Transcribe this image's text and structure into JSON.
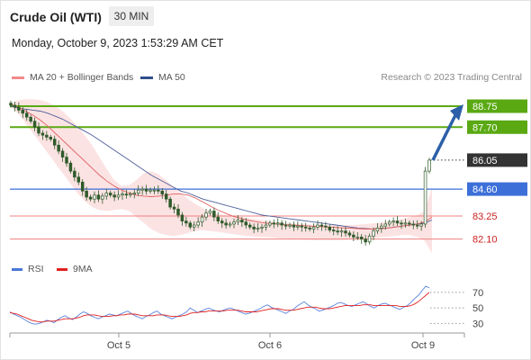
{
  "header": {
    "title": "Crude Oil (WTI)",
    "timeframe": "30 MIN",
    "datetime": "Monday, October 9, 2023 1:53:29 AM CET"
  },
  "legend": {
    "items": [
      {
        "label": "MA 20 + Bollinger Bands",
        "color": "#f28a8a"
      },
      {
        "label": "MA 50",
        "color": "#2e4f8a"
      }
    ],
    "credit": "Research © 2023 Trading Central"
  },
  "rsi_legend": {
    "items": [
      {
        "label": "RSI",
        "color": "#4a78d8"
      },
      {
        "label": "9MA",
        "color": "#e02020"
      }
    ]
  },
  "colors": {
    "green": "#5aa913",
    "blue": "#3c6fd8",
    "red_line": "#ef7f7f",
    "candle": "#2f5a2a",
    "ma50": "#4f5f9a",
    "ma20": "#e06060",
    "band_fill": "#fcdede",
    "arrow": "#2c5fa8",
    "price_box": "#333333"
  },
  "chart_data": [
    {
      "type": "candlestick",
      "title": "Crude Oil (WTI)",
      "timeframe": "30 MIN",
      "ylim": [
        81.0,
        89.2
      ],
      "x_ticks": [
        "Oct 5",
        "Oct 6",
        "Oct 9"
      ],
      "levels": [
        {
          "label": "88.75",
          "value": 88.75,
          "kind": "resistance"
        },
        {
          "label": "87.70",
          "value": 87.7,
          "kind": "resistance"
        },
        {
          "label": "86.05",
          "value": 86.05,
          "kind": "last-price"
        },
        {
          "label": "84.60",
          "value": 84.6,
          "kind": "pivot"
        },
        {
          "label": "83.25",
          "value": 83.25,
          "kind": "support"
        },
        {
          "label": "82.10",
          "value": 82.1,
          "kind": "support"
        }
      ],
      "forecast_arrow": {
        "from": 86.05,
        "to": 88.75
      },
      "close": [
        88.8,
        88.7,
        88.55,
        88.4,
        88.2,
        88.0,
        87.7,
        87.4,
        87.3,
        87.2,
        87.1,
        86.8,
        86.5,
        86.2,
        85.9,
        85.5,
        85.2,
        84.95,
        84.5,
        84.2,
        84.1,
        84.3,
        84.1,
        84.25,
        84.4,
        84.3,
        84.2,
        84.3,
        84.35,
        84.3,
        84.35,
        84.4,
        84.55,
        84.6,
        84.5,
        84.55,
        84.55,
        84.5,
        84.35,
        84.1,
        83.7,
        83.6,
        83.3,
        83.0,
        82.9,
        82.7,
        82.8,
        82.95,
        83.2,
        83.4,
        83.5,
        83.2,
        83.0,
        82.9,
        82.8,
        82.85,
        82.95,
        83.05,
        82.95,
        82.8,
        82.7,
        82.6,
        82.65,
        82.7,
        82.8,
        82.9,
        82.85,
        82.9,
        82.8,
        82.75,
        82.8,
        82.7,
        82.75,
        82.7,
        82.65,
        82.6,
        82.7,
        82.8,
        82.75,
        82.7,
        82.55,
        82.5,
        82.45,
        82.5,
        82.4,
        82.3,
        82.2,
        82.2,
        82.1,
        81.95,
        82.25,
        82.5,
        82.65,
        82.75,
        82.85,
        82.95,
        83.0,
        82.9,
        82.85,
        82.9,
        82.85,
        82.8,
        82.75,
        82.85,
        85.5,
        86.05
      ],
      "ma50": [
        88.75,
        88.65,
        88.6,
        88.55,
        88.5,
        88.4,
        88.25,
        88.1,
        87.9,
        87.7,
        87.5,
        87.3,
        87.05,
        86.8,
        86.55,
        86.3,
        86.05,
        85.8,
        85.55,
        85.3,
        85.1,
        84.9,
        84.7,
        84.5,
        84.4,
        84.25,
        84.1,
        84.0,
        83.9,
        83.8,
        83.7,
        83.6,
        83.5,
        83.4,
        83.3,
        83.25,
        83.2,
        83.15,
        83.1,
        83.05,
        83.0,
        82.95,
        82.9,
        82.85,
        82.8,
        82.75,
        82.7,
        82.65,
        82.62,
        82.6,
        82.62,
        82.65,
        82.7,
        82.75,
        82.8,
        82.85,
        82.9,
        83.05
      ],
      "ma20": [
        88.85,
        88.7,
        88.5,
        88.3,
        88.05,
        87.75,
        87.4,
        87.05,
        86.7,
        86.35,
        86.0,
        85.65,
        85.3,
        85.0,
        84.75,
        84.55,
        84.4,
        84.3,
        84.25,
        84.22,
        84.25,
        84.3,
        84.35,
        84.35,
        84.3,
        84.15,
        83.95,
        83.75,
        83.55,
        83.4,
        83.25,
        83.15,
        83.05,
        82.98,
        82.92,
        82.88,
        82.85,
        82.82,
        82.8,
        82.78,
        82.76,
        82.74,
        82.72,
        82.7,
        82.68,
        82.66,
        82.64,
        82.62,
        82.6,
        82.6,
        82.62,
        82.65,
        82.7,
        82.75,
        82.8,
        82.85,
        82.95,
        83.2
      ],
      "bb_upper": [
        88.9,
        89.05,
        89.1,
        89.1,
        89.05,
        88.95,
        88.75,
        88.5,
        88.15,
        87.75,
        87.3,
        86.8,
        86.2,
        85.6,
        85.05,
        84.75,
        84.8,
        85.05,
        85.4,
        85.5,
        85.35,
        85.05,
        84.7,
        84.4,
        84.1,
        83.85,
        83.65,
        83.45,
        83.35,
        83.3,
        83.25,
        83.2,
        83.15,
        83.1,
        83.05,
        83.0,
        82.95,
        82.9,
        82.88,
        82.86,
        82.84,
        82.82,
        82.8,
        82.8,
        82.8,
        82.8,
        82.8,
        82.82,
        82.85,
        82.88,
        82.92,
        82.97,
        83.03,
        83.1,
        83.2,
        83.3,
        83.5,
        84.7
      ],
      "bb_lower": [
        88.7,
        88.4,
        87.9,
        87.4,
        86.9,
        86.4,
        85.9,
        85.4,
        84.9,
        84.4,
        84.0,
        83.7,
        83.55,
        83.5,
        83.55,
        83.6,
        83.5,
        83.2,
        82.9,
        82.6,
        82.4,
        82.3,
        82.25,
        82.3,
        82.4,
        82.5,
        82.55,
        82.5,
        82.45,
        82.4,
        82.35,
        82.3,
        82.25,
        82.22,
        82.2,
        82.18,
        82.15,
        82.12,
        82.1,
        82.08,
        82.06,
        82.05,
        82.05,
        82.05,
        82.05,
        82.06,
        82.08,
        82.1,
        82.12,
        82.15,
        82.18,
        82.22,
        82.25,
        82.3,
        82.3,
        82.2,
        82.0,
        81.4
      ]
    },
    {
      "type": "line",
      "title": "RSI",
      "ylim": [
        20,
        85
      ],
      "y_ticks": [
        70,
        50,
        30
      ],
      "series": [
        {
          "name": "RSI",
          "values": [
            45,
            42,
            40,
            38,
            35,
            32,
            30,
            29,
            30,
            32,
            34,
            33,
            31,
            35,
            38,
            40,
            37,
            35,
            38,
            42,
            45,
            43,
            40,
            38,
            36,
            38,
            40,
            42,
            41,
            40,
            42,
            44,
            46,
            43,
            40,
            38,
            36,
            39,
            41,
            44,
            46,
            42,
            40,
            38,
            36,
            38,
            40,
            42,
            45,
            50,
            47,
            44,
            46,
            48,
            50,
            48,
            46,
            45,
            47,
            49,
            50,
            48,
            46,
            44,
            42,
            43,
            45,
            47,
            49,
            52,
            54,
            51,
            49,
            47,
            45,
            43,
            46,
            48,
            52,
            55,
            58,
            54,
            51,
            49,
            46,
            47,
            49,
            51,
            53,
            56,
            57,
            55,
            53,
            52,
            54,
            56,
            58,
            55,
            52,
            50,
            53,
            55,
            56,
            54,
            52,
            50,
            48,
            51,
            53,
            57,
            62,
            66,
            72,
            78,
            76
          ]
        },
        {
          "name": "9MA",
          "values": [
            44,
            43,
            42,
            40,
            38,
            36,
            34,
            33,
            32,
            32,
            33,
            33,
            33,
            34,
            35,
            36,
            36,
            36,
            37,
            38,
            40,
            41,
            41,
            41,
            40,
            39,
            39,
            39,
            40,
            40,
            41,
            41,
            42,
            42,
            42,
            41,
            40,
            40,
            40,
            40,
            41,
            41,
            41,
            40,
            39,
            39,
            39,
            40,
            41,
            43,
            44,
            44,
            45,
            45,
            46,
            46,
            46,
            46,
            46,
            47,
            47,
            47,
            47,
            46,
            45,
            45,
            45,
            45,
            46,
            47,
            48,
            49,
            49,
            49,
            48,
            47,
            47,
            47,
            48,
            49,
            50,
            51,
            51,
            51,
            50,
            49,
            49,
            49,
            50,
            51,
            52,
            53,
            53,
            53,
            53,
            53,
            54,
            54,
            54,
            53,
            53,
            53,
            53,
            53,
            53,
            53,
            52,
            52,
            52,
            53,
            55,
            58,
            62,
            66,
            70
          ]
        }
      ]
    }
  ]
}
